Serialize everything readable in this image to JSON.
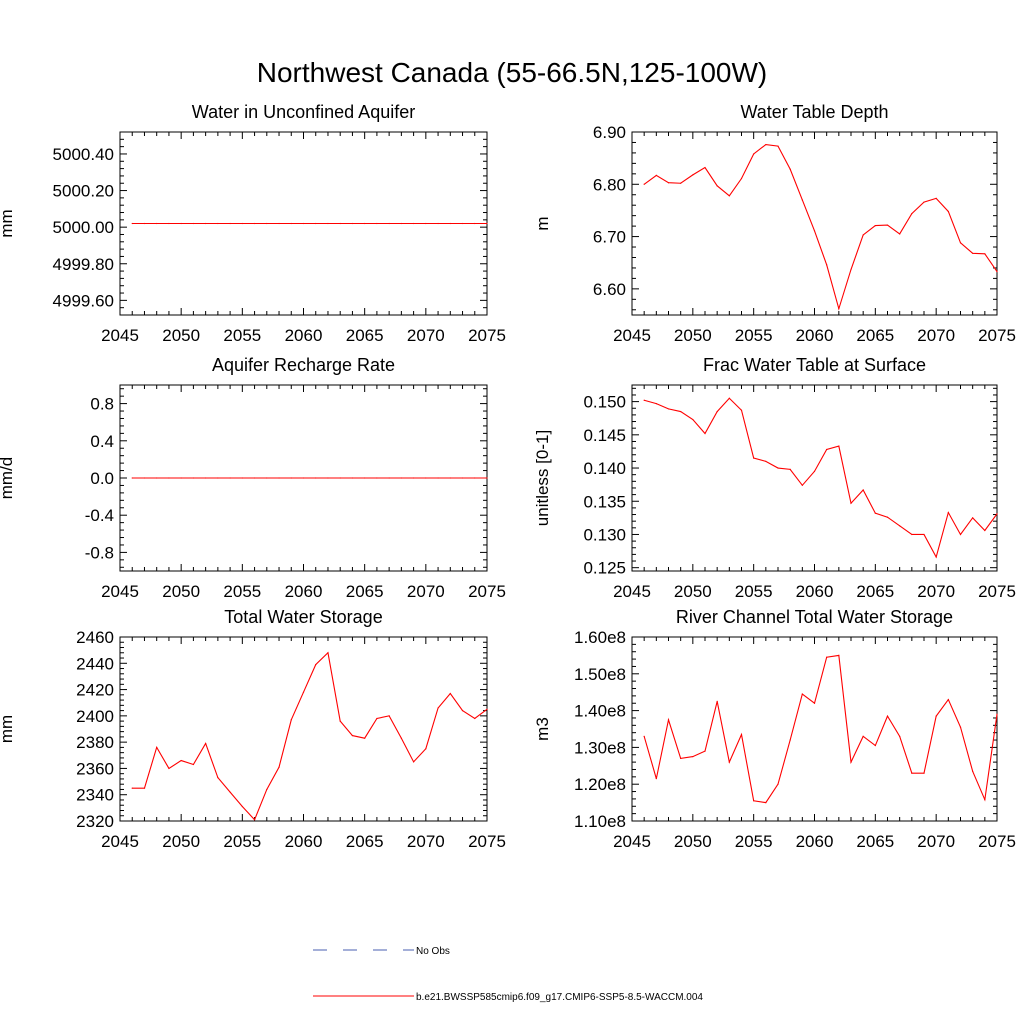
{
  "figure": {
    "title": "Northwest Canada (55-66.5N,125-100W)"
  },
  "legend": {
    "entries": [
      {
        "label": "No Obs",
        "color": "#4a5fb0",
        "dash": "dashed"
      },
      {
        "label": "b.e21.BWSSP585cmip6.f09_g17.CMIP6-SSP5-8.5-WACCM.004",
        "color": "#ff0000",
        "dash": "solid"
      }
    ]
  },
  "chart_data": [
    {
      "type": "line",
      "title": "Water in Unconfined Aquifer",
      "xlabel": "",
      "ylabel": "mm",
      "xlim": [
        2045,
        2075
      ],
      "ylim": [
        4999.52,
        5000.52
      ],
      "xticks": [
        2045,
        2050,
        2055,
        2060,
        2065,
        2070,
        2075
      ],
      "yticks": [
        4999.6,
        4999.8,
        5000.0,
        5000.2,
        5000.4
      ],
      "ytick_labels": [
        "4999.60",
        "4999.80",
        "5000.00",
        "5000.20",
        "5000.40"
      ],
      "x": [
        2046,
        2047,
        2048,
        2049,
        2050,
        2051,
        2052,
        2053,
        2054,
        2055,
        2056,
        2057,
        2058,
        2059,
        2060,
        2061,
        2062,
        2063,
        2064,
        2065,
        2066,
        2067,
        2068,
        2069,
        2070,
        2071,
        2072,
        2073,
        2074,
        2075
      ],
      "series": [
        {
          "color": "#ff0000",
          "values": [
            5000.02,
            5000.02,
            5000.02,
            5000.02,
            5000.02,
            5000.02,
            5000.02,
            5000.02,
            5000.02,
            5000.02,
            5000.02,
            5000.02,
            5000.02,
            5000.02,
            5000.02,
            5000.02,
            5000.02,
            5000.02,
            5000.02,
            5000.02,
            5000.02,
            5000.02,
            5000.02,
            5000.02,
            5000.02,
            5000.02,
            5000.02,
            5000.02,
            5000.02,
            5000.02
          ]
        }
      ]
    },
    {
      "type": "line",
      "title": "Water Table Depth",
      "xlabel": "",
      "ylabel": "m",
      "xlim": [
        2045,
        2075
      ],
      "ylim": [
        6.55,
        6.9
      ],
      "xticks": [
        2045,
        2050,
        2055,
        2060,
        2065,
        2070,
        2075
      ],
      "yticks": [
        6.6,
        6.7,
        6.8,
        6.9
      ],
      "ytick_labels": [
        "6.60",
        "6.70",
        "6.80",
        "6.90"
      ],
      "x": [
        2046,
        2047,
        2048,
        2049,
        2050,
        2051,
        2052,
        2053,
        2054,
        2055,
        2056,
        2057,
        2058,
        2059,
        2060,
        2061,
        2062,
        2063,
        2064,
        2065,
        2066,
        2067,
        2068,
        2069,
        2070,
        2071,
        2072,
        2073,
        2074,
        2075
      ],
      "series": [
        {
          "color": "#ff0000",
          "values": [
            6.8,
            6.817,
            6.803,
            6.802,
            6.818,
            6.832,
            6.797,
            6.778,
            6.811,
            6.858,
            6.876,
            6.873,
            6.829,
            6.77,
            6.711,
            6.646,
            6.562,
            6.637,
            6.703,
            6.721,
            6.722,
            6.705,
            6.744,
            6.766,
            6.773,
            6.748,
            6.688,
            6.668,
            6.667,
            6.633
          ]
        }
      ]
    },
    {
      "type": "line",
      "title": "Aquifer Recharge Rate",
      "xlabel": "",
      "ylabel": "mm/d",
      "xlim": [
        2045,
        2075
      ],
      "ylim": [
        -1.0,
        1.0
      ],
      "xticks": [
        2045,
        2050,
        2055,
        2060,
        2065,
        2070,
        2075
      ],
      "yticks": [
        -0.8,
        -0.4,
        0.0,
        0.4,
        0.8
      ],
      "ytick_labels": [
        "-0.8",
        "-0.4",
        "0.0",
        "0.4",
        "0.8"
      ],
      "x": [
        2046,
        2047,
        2048,
        2049,
        2050,
        2051,
        2052,
        2053,
        2054,
        2055,
        2056,
        2057,
        2058,
        2059,
        2060,
        2061,
        2062,
        2063,
        2064,
        2065,
        2066,
        2067,
        2068,
        2069,
        2070,
        2071,
        2072,
        2073,
        2074,
        2075
      ],
      "series": [
        {
          "color": "#ff0000",
          "values": [
            0,
            0,
            0,
            0,
            0,
            0,
            0,
            0,
            0,
            0,
            0,
            0,
            0,
            0,
            0,
            0,
            0,
            0,
            0,
            0,
            0,
            0,
            0,
            0,
            0,
            0,
            0,
            0,
            0,
            0
          ]
        }
      ]
    },
    {
      "type": "line",
      "title": "Frac Water Table at Surface",
      "xlabel": "",
      "ylabel": "unitless [0-1]",
      "xlim": [
        2045,
        2075
      ],
      "ylim": [
        0.1245,
        0.1525
      ],
      "xticks": [
        2045,
        2050,
        2055,
        2060,
        2065,
        2070,
        2075
      ],
      "yticks": [
        0.125,
        0.13,
        0.135,
        0.14,
        0.145,
        0.15
      ],
      "ytick_labels": [
        "0.125",
        "0.130",
        "0.135",
        "0.140",
        "0.145",
        "0.150"
      ],
      "x": [
        2046,
        2047,
        2048,
        2049,
        2050,
        2051,
        2052,
        2053,
        2054,
        2055,
        2056,
        2057,
        2058,
        2059,
        2060,
        2061,
        2062,
        2063,
        2064,
        2065,
        2066,
        2067,
        2068,
        2069,
        2070,
        2071,
        2072,
        2073,
        2074,
        2075
      ],
      "series": [
        {
          "color": "#ff0000",
          "values": [
            0.1502,
            0.1497,
            0.1489,
            0.1485,
            0.1473,
            0.1452,
            0.1485,
            0.1505,
            0.1487,
            0.1415,
            0.141,
            0.14,
            0.1398,
            0.1374,
            0.1395,
            0.1428,
            0.1433,
            0.1347,
            0.1367,
            0.1332,
            0.1326,
            0.1313,
            0.13,
            0.13,
            0.1266,
            0.1333,
            0.13,
            0.1325,
            0.1306,
            0.1331
          ]
        }
      ]
    },
    {
      "type": "line",
      "title": "Total Water Storage",
      "xlabel": "",
      "ylabel": "mm",
      "xlim": [
        2045,
        2075
      ],
      "ylim": [
        2320,
        2460
      ],
      "xticks": [
        2045,
        2050,
        2055,
        2060,
        2065,
        2070,
        2075
      ],
      "yticks": [
        2320,
        2340,
        2360,
        2380,
        2400,
        2420,
        2440,
        2460
      ],
      "ytick_labels": [
        "2320",
        "2340",
        "2360",
        "2380",
        "2400",
        "2420",
        "2440",
        "2460"
      ],
      "x": [
        2046,
        2047,
        2048,
        2049,
        2050,
        2051,
        2052,
        2053,
        2054,
        2055,
        2056,
        2057,
        2058,
        2059,
        2060,
        2061,
        2062,
        2063,
        2064,
        2065,
        2066,
        2067,
        2068,
        2069,
        2070,
        2071,
        2072,
        2073,
        2074,
        2075
      ],
      "series": [
        {
          "color": "#ff0000",
          "values": [
            2345,
            2345,
            2376,
            2360,
            2366,
            2363,
            2379,
            2353,
            2342,
            2331,
            2321,
            2344,
            2361,
            2397,
            2418,
            2439,
            2448,
            2396,
            2385,
            2383,
            2398,
            2400,
            2383,
            2365,
            2375,
            2406,
            2417,
            2404,
            2398,
            2405
          ]
        }
      ]
    },
    {
      "type": "line",
      "title": "River Channel Total Water Storage",
      "xlabel": "",
      "ylabel": "m3",
      "xlim": [
        2045,
        2075
      ],
      "ylim": [
        110000000,
        160000000
      ],
      "xticks": [
        2045,
        2050,
        2055,
        2060,
        2065,
        2070,
        2075
      ],
      "yticks": [
        110000000,
        120000000,
        130000000,
        140000000,
        150000000,
        160000000
      ],
      "ytick_labels": [
        "1.10e8",
        "1.20e8",
        "1.30e8",
        "1.40e8",
        "1.50e8",
        "1.60e8"
      ],
      "x": [
        2046,
        2047,
        2048,
        2049,
        2050,
        2051,
        2052,
        2053,
        2054,
        2055,
        2056,
        2057,
        2058,
        2059,
        2060,
        2061,
        2062,
        2063,
        2064,
        2065,
        2066,
        2067,
        2068,
        2069,
        2070,
        2071,
        2072,
        2073,
        2074,
        2075
      ],
      "series": [
        {
          "color": "#ff0000",
          "values": [
            133000000,
            121500000,
            137500000,
            127000000,
            127500000,
            129000000,
            142500000,
            126000000,
            133500000,
            115500000,
            115000000,
            120000000,
            132000000,
            144500000,
            142000000,
            154500000,
            155000000,
            126000000,
            133000000,
            130500000,
            138500000,
            133000000,
            123000000,
            123000000,
            138500000,
            143000000,
            135500000,
            123500000,
            115800000,
            139000000
          ]
        }
      ]
    }
  ]
}
